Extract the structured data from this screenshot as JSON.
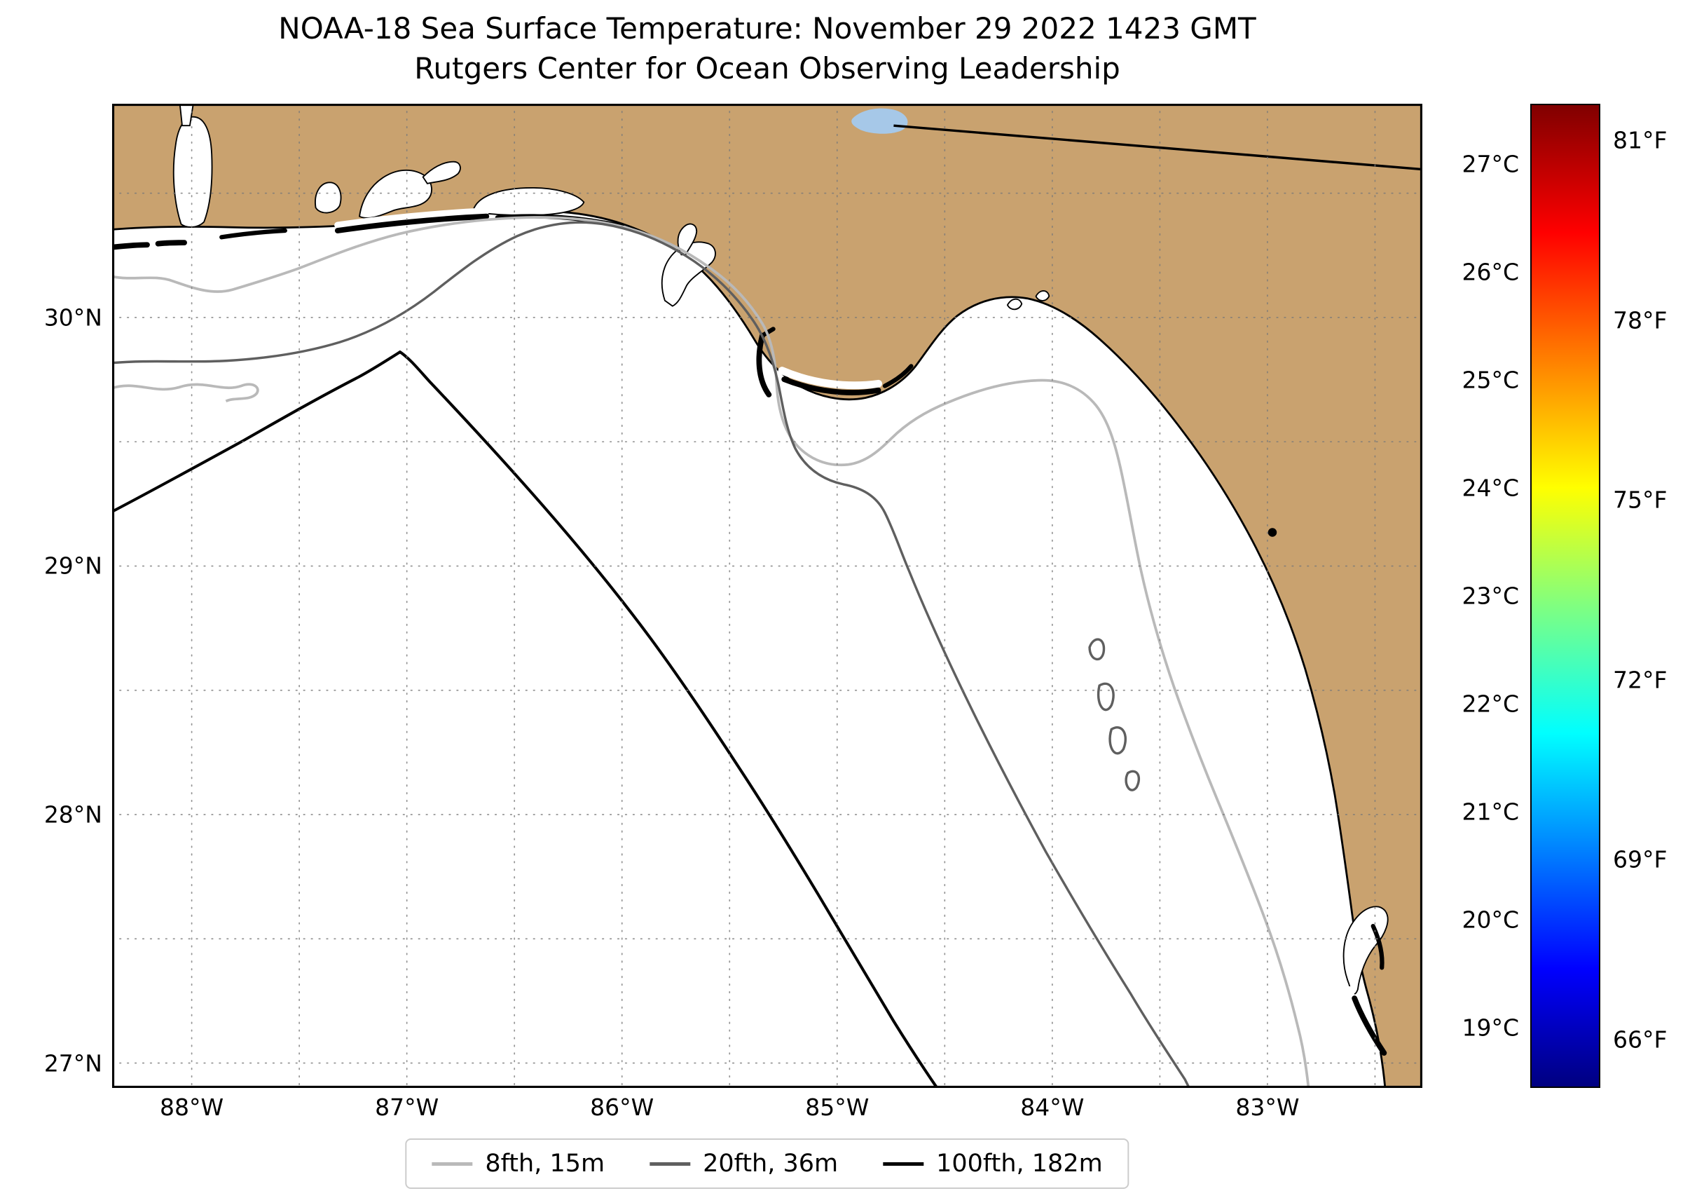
{
  "title": {
    "line1": "NOAA-18 Sea Surface Temperature: November 29 2022 1423 GMT",
    "line2": "Rutgers Center for Ocean Observing Leadership"
  },
  "map": {
    "extent_est": {
      "lon_min": -88.37,
      "lon_max": -82.28,
      "lat_min": 26.9,
      "lat_max": 30.86
    },
    "grid_interval_deg": 0.5,
    "lat_ticks": [
      {
        "value": 30,
        "label": "30°N"
      },
      {
        "value": 29,
        "label": "29°N"
      },
      {
        "value": 28,
        "label": "28°N"
      },
      {
        "value": 27,
        "label": "27°N"
      }
    ],
    "lon_ticks": [
      {
        "value": -88,
        "label": "88°W"
      },
      {
        "value": -87,
        "label": "87°W"
      },
      {
        "value": -86,
        "label": "86°W"
      },
      {
        "value": -85,
        "label": "85°W"
      },
      {
        "value": -84,
        "label": "84°W"
      },
      {
        "value": -83,
        "label": "83°W"
      }
    ],
    "colors": {
      "land": "#c9a26f",
      "lake": "#a6c8e8",
      "ocean": "#ffffff",
      "contour_8fth": "#b9b9b9",
      "contour_20fth": "#5f5f5f",
      "contour_100fth": "#000000",
      "grid": "#7a7a7a"
    }
  },
  "colorbar": {
    "colormap": "jet",
    "cmin_c": 18.44,
    "cmax_c": 27.56,
    "celsius_ticks": [
      {
        "value": 27,
        "label": "27°C"
      },
      {
        "value": 26,
        "label": "26°C"
      },
      {
        "value": 25,
        "label": "25°C"
      },
      {
        "value": 24,
        "label": "24°C"
      },
      {
        "value": 23,
        "label": "23°C"
      },
      {
        "value": 22,
        "label": "22°C"
      },
      {
        "value": 21,
        "label": "21°C"
      },
      {
        "value": 20,
        "label": "20°C"
      },
      {
        "value": 19,
        "label": "19°C"
      }
    ],
    "fahrenheit_ticks": [
      {
        "value": 81,
        "label": "81°F"
      },
      {
        "value": 78,
        "label": "78°F"
      },
      {
        "value": 75,
        "label": "75°F"
      },
      {
        "value": 72,
        "label": "72°F"
      },
      {
        "value": 69,
        "label": "69°F"
      },
      {
        "value": 66,
        "label": "66°F"
      }
    ],
    "gradient_stops": [
      "#800000 0%",
      "#ff0000 13%",
      "#ff8000 26%",
      "#ffff00 39%",
      "#80ff80 51%",
      "#00ffff 64%",
      "#0080ff 76%",
      "#0000ff 88%",
      "#000080 100%"
    ]
  },
  "legend": {
    "items": [
      {
        "label": "8fth, 15m",
        "color": "#b9b9b9"
      },
      {
        "label": "20fth, 36m",
        "color": "#5f5f5f"
      },
      {
        "label": "100fth, 182m",
        "color": "#000000"
      }
    ]
  }
}
